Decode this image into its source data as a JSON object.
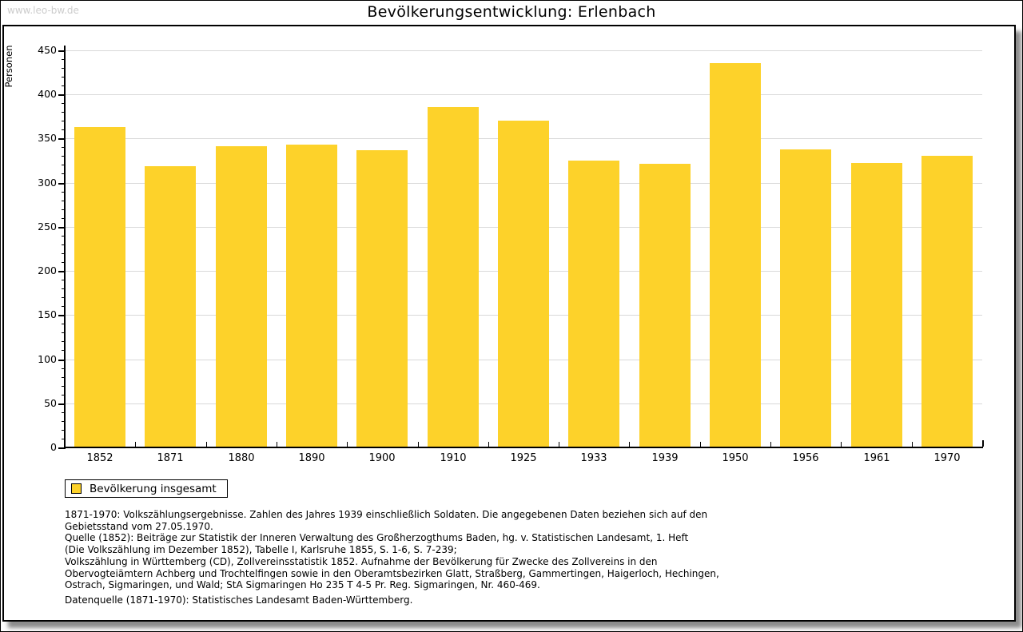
{
  "page": {
    "watermark": "www.leo-bw.de",
    "title": "Bevölkerungsentwicklung: Erlenbach"
  },
  "chart_data": {
    "type": "bar",
    "title": "Bevölkerungsentwicklung: Erlenbach",
    "xlabel": "",
    "ylabel": "Personen",
    "categories": [
      "1852",
      "1871",
      "1880",
      "1890",
      "1900",
      "1910",
      "1925",
      "1933",
      "1939",
      "1950",
      "1956",
      "1961",
      "1970"
    ],
    "series": [
      {
        "name": "Bevölkerung insgesamt",
        "values": [
          362,
          318,
          340,
          342,
          336,
          385,
          369,
          324,
          320,
          434,
          337,
          321,
          329
        ]
      }
    ],
    "ylim": [
      0,
      450
    ],
    "ytick_step": 50,
    "yminor_step": 10,
    "grid": true,
    "legend_position": "bottom-left",
    "bar_color": "#FDD22A",
    "gridline_color": "#d9d9d9",
    "axis_color": "#000000"
  },
  "legend": {
    "label": "Bevölkerung insgesamt",
    "swatch_color": "#FDD22A"
  },
  "footnotes": {
    "lines": [
      "1871-1970: Volkszählungsergebnisse. Zahlen des Jahres 1939 einschließlich Soldaten. Die angegebenen Daten beziehen sich auf den",
      "Gebietsstand vom 27.05.1970.",
      "Quelle (1852): Beiträge zur Statistik der Inneren Verwaltung des Großherzogthums Baden, hg. v. Statistischen Landesamt, 1. Heft",
      "(Die Volkszählung im Dezember 1852), Tabelle I, Karlsruhe 1855, S. 1-6, S. 7-239;",
      "Volkszählung in Württemberg (CD), Zollvereinsstatistik 1852. Aufnahme der Bevölkerung für Zwecke des Zollvereins in den",
      "Obervogteiämtern Achberg und Trochtelfingen sowie in den Oberamtsbezirken Glatt, Straßberg, Gammertingen, Haigerloch, Hechingen,",
      "Ostrach, Sigmaringen, und Wald; StA Sigmaringen Ho 235 T 4-5 Pr. Reg. Sigmaringen, Nr. 460-469."
    ],
    "datasource": "Datenquelle (1871-1970): Statistisches Landesamt Baden-Württemberg."
  }
}
